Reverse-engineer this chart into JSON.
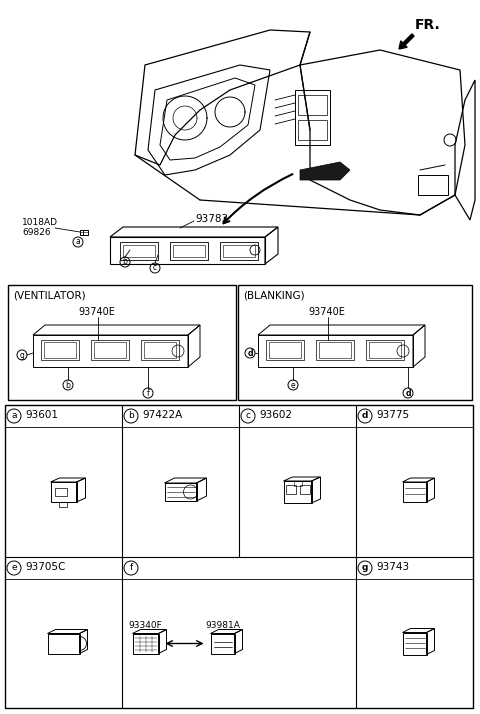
{
  "bg_color": "#ffffff",
  "lc": "#000000",
  "fr_text": "FR.",
  "bolt_label": "1018AD\n69826",
  "asm_label": "93783",
  "vent_label": "(VENTILATOR)",
  "blank_label": "(BLANKING)",
  "vent_part": "93740E",
  "blank_part": "93740E",
  "parts": [
    {
      "letter": "a",
      "part": "93601",
      "row": 0,
      "col": 0
    },
    {
      "letter": "b",
      "part": "97422A",
      "row": 0,
      "col": 1
    },
    {
      "letter": "c",
      "part": "93602",
      "row": 0,
      "col": 2
    },
    {
      "letter": "d",
      "part": "93775",
      "row": 0,
      "col": 3
    },
    {
      "letter": "e",
      "part": "93705C",
      "row": 1,
      "col": 0
    },
    {
      "letter": "f",
      "part": "",
      "row": 1,
      "col": 1
    },
    {
      "letter": "g",
      "part": "93743",
      "row": 1,
      "col": 3
    }
  ],
  "f_parts": [
    "93340F",
    "93981A"
  ]
}
